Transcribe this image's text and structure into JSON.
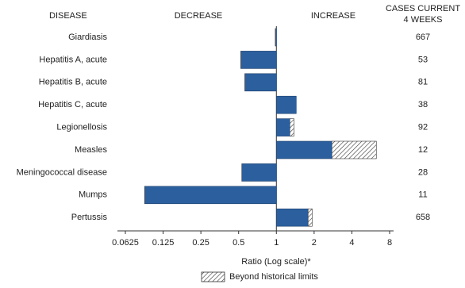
{
  "chart_data": {
    "type": "bar",
    "orientation": "horizontal",
    "headers": {
      "disease": "DISEASE",
      "decrease": "DECREASE",
      "increase": "INCREASE",
      "cases": [
        "CASES CURRENT",
        "4 WEEKS"
      ]
    },
    "categories": [
      "Giardiasis",
      "Hepatitis A, acute",
      "Hepatitis B, acute",
      "Hepatitis C, acute",
      "Legionellosis",
      "Measles",
      "Meningococcal disease",
      "Mumps",
      "Pertussis"
    ],
    "values": [
      0.98,
      0.52,
      0.56,
      1.44,
      1.38,
      6.27,
      0.53,
      0.089,
      1.93
    ],
    "limits": [
      null,
      null,
      null,
      null,
      1.28,
      2.77,
      null,
      null,
      1.79
    ],
    "cases": [
      667,
      53,
      81,
      38,
      92,
      12,
      28,
      11,
      658
    ],
    "color": "#2c5f9e",
    "xlabel": "Ratio (Log scale)*",
    "log_scale": true,
    "xlim": [
      0.0625,
      8
    ],
    "xticks": [
      0.0625,
      0.125,
      0.25,
      0.5,
      1,
      2,
      4,
      8
    ],
    "legend": "Beyond historical limits"
  }
}
